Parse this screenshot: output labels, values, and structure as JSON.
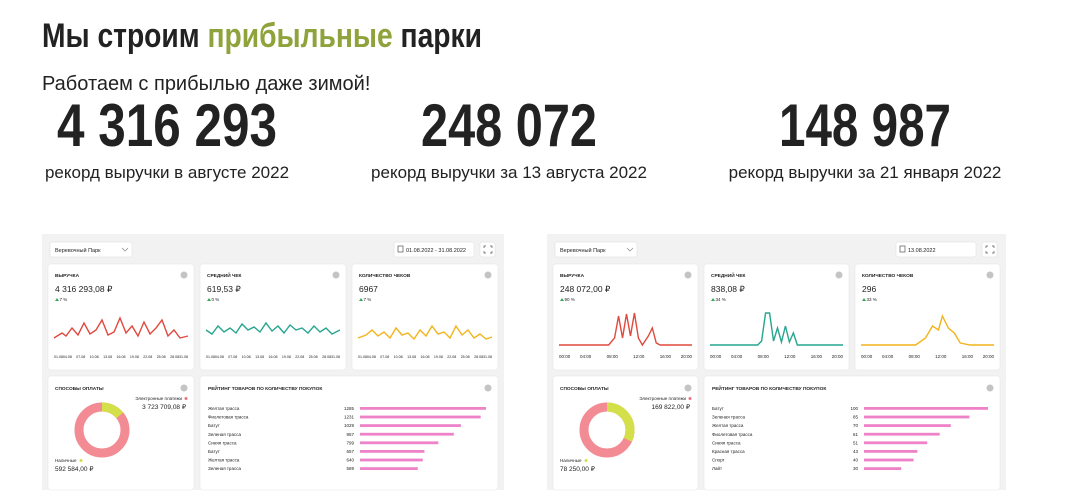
{
  "header": {
    "title_parts": [
      "Мы строим ",
      "прибыльные",
      " парки"
    ],
    "subtitle": "Работаем с прибылью даже зимой!"
  },
  "stats": [
    {
      "value": "4 316 293",
      "caption": "рекорд выручки в августе 2022"
    },
    {
      "value": "248 072",
      "caption": "рекорд выручки за 13 августа 2022"
    },
    {
      "value": "148 987",
      "caption": "рекорд выручки за 21 января 2022"
    }
  ],
  "dashboards": [
    {
      "park_select": "Веревочный Парк",
      "date_range": "01.08.2022 - 31.08.2022",
      "cards": [
        {
          "title": "ВЫРУЧКА",
          "value": "4 316 293,08 ₽",
          "change": "7 %"
        },
        {
          "title": "СРЕДНИЙ ЧЕК",
          "value": "619,53 ₽",
          "change": "0 %"
        },
        {
          "title": "КОЛИЧЕСТВО ЧЕКОВ",
          "value": "6967",
          "change": "7 %"
        }
      ],
      "x_ticks": [
        "01.08",
        "04.08",
        "07.08",
        "10.08",
        "13.08",
        "16.08",
        "19.08",
        "22.08",
        "25.08",
        "28.08",
        "31.08"
      ],
      "payments": {
        "title": "СПОСОБЫ ОПЛАТЫ",
        "electronic_label": "Электронные платежи",
        "electronic_value": "3 723 709,08 ₽",
        "cash_label": "Наличные",
        "cash_value": "592 584,00 ₽"
      },
      "rating": {
        "title": "РЕЙТИНГ ТОВАРОВ ПО КОЛИЧЕСТВУ ПОКУПОК",
        "items": [
          {
            "name": "Желтая трасса",
            "count": 1285
          },
          {
            "name": "Фиолетовая трасса",
            "count": 1231
          },
          {
            "name": "Батут",
            "count": 1029
          },
          {
            "name": "Зеленая трасса",
            "count": 957
          },
          {
            "name": "Синяя трасса",
            "count": 799
          },
          {
            "name": "Батут",
            "count": 657
          },
          {
            "name": "Желтая трасса",
            "count": 640
          },
          {
            "name": "Зеленая трасса",
            "count": 589
          }
        ]
      }
    },
    {
      "park_select": "Веревочный Парк",
      "date_range": "13.08.2022",
      "cards": [
        {
          "title": "ВЫРУЧКА",
          "value": "248 072,00 ₽",
          "change": "90 %"
        },
        {
          "title": "СРЕДНИЙ ЧЕК",
          "value": "838,08 ₽",
          "change": "34 %"
        },
        {
          "title": "КОЛИЧЕСТВО ЧЕКОВ",
          "value": "296",
          "change": "33 %"
        }
      ],
      "x_ticks": [
        "00:00",
        "04:00",
        "08:00",
        "12:00",
        "16:00",
        "20:00"
      ],
      "payments": {
        "title": "СПОСОБЫ ОПЛАТЫ",
        "electronic_label": "Электронные платежи",
        "electronic_value": "169 822,00 ₽",
        "cash_label": "Наличные",
        "cash_value": "78 250,00 ₽"
      },
      "rating": {
        "title": "РЕЙТИНГ ТОВАРОВ ПО КОЛИЧЕСТВУ ПОКУПОК",
        "items": [
          {
            "name": "Батут",
            "count": 100
          },
          {
            "name": "Зеленая трасса",
            "count": 85
          },
          {
            "name": "Желтая трасса",
            "count": 70
          },
          {
            "name": "Фиолетовая трасса",
            "count": 61
          },
          {
            "name": "Синяя трасса",
            "count": 51
          },
          {
            "name": "Красная трасса",
            "count": 43
          },
          {
            "name": "Спорт",
            "count": 40
          },
          {
            "name": "Лайт",
            "count": 30
          }
        ]
      }
    }
  ]
}
